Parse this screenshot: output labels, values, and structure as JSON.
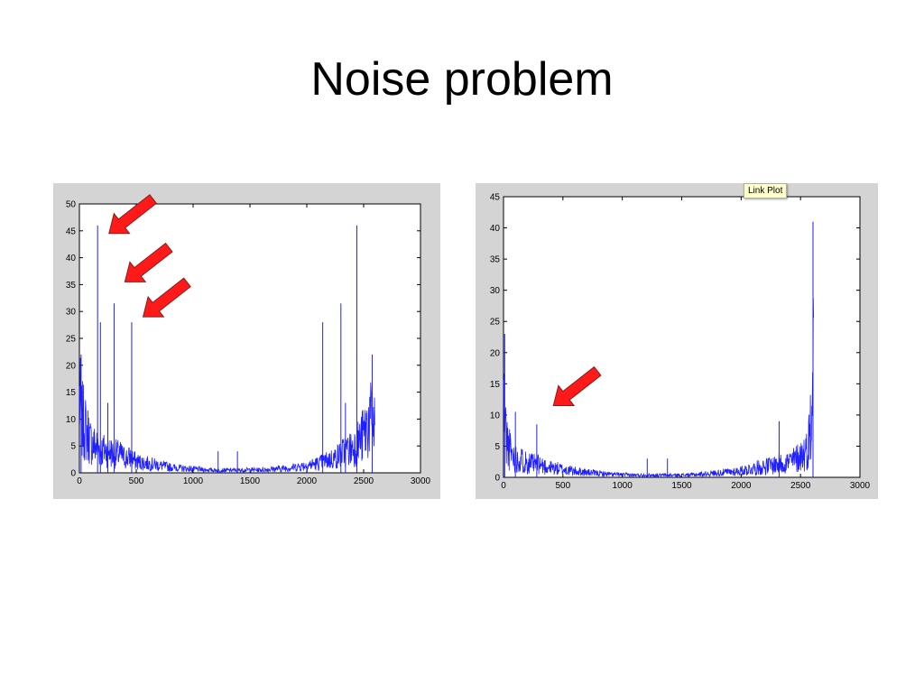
{
  "slide": {
    "title": "Noise problem"
  },
  "tooltip": {
    "label": "Link Plot"
  },
  "colors": {
    "series": "#1f1fff",
    "arrow": "#ff1a1a",
    "panel_background": "#d4d4d4"
  },
  "chart_data": [
    {
      "type": "line",
      "title": "",
      "xlabel": "",
      "ylabel": "",
      "xlim": [
        0,
        3000
      ],
      "ylim": [
        0,
        50
      ],
      "x_ticks": [
        0,
        500,
        1000,
        1500,
        2000,
        2500,
        3000
      ],
      "y_ticks": [
        0,
        5,
        10,
        15,
        20,
        25,
        30,
        35,
        40,
        45,
        50
      ],
      "grid": false,
      "series": [
        {
          "values_x": [
            0,
            20,
            40,
            60,
            80,
            100,
            150,
            200,
            250,
            300,
            350,
            400,
            450,
            500,
            600,
            700,
            800,
            900,
            1000,
            1100,
            1200,
            1300,
            1400,
            1500,
            1600,
            1700,
            1800,
            1900,
            2000,
            2100,
            2200,
            2250,
            2300,
            2350,
            2400,
            2450,
            2500,
            2550,
            2600
          ],
          "values_y": [
            20,
            14,
            13,
            11,
            10,
            8,
            7,
            6,
            6,
            5,
            5,
            4,
            4,
            3,
            2.5,
            2,
            1.5,
            1.2,
            1,
            0.8,
            0.7,
            0.7,
            0.7,
            0.8,
            0.8,
            1,
            1.2,
            1.5,
            2,
            2.5,
            3.5,
            4,
            5,
            6,
            6.5,
            8,
            10,
            14,
            12
          ],
          "spikes": [
            {
              "x": 15,
              "y": 22
            },
            {
              "x": 160,
              "y": 46
            },
            {
              "x": 185,
              "y": 28
            },
            {
              "x": 305,
              "y": 31.5
            },
            {
              "x": 250,
              "y": 13
            },
            {
              "x": 460,
              "y": 28
            },
            {
              "x": 1220,
              "y": 4
            },
            {
              "x": 1390,
              "y": 4
            },
            {
              "x": 2140,
              "y": 28
            },
            {
              "x": 2300,
              "y": 31.5
            },
            {
              "x": 2340,
              "y": 13
            },
            {
              "x": 2440,
              "y": 46
            },
            {
              "x": 2575,
              "y": 22
            }
          ]
        }
      ],
      "annotations": [
        {
          "type": "arrow",
          "tip_x": 260,
          "tip_y": 44.5
        },
        {
          "type": "arrow",
          "tip_x": 400,
          "tip_y": 35.5
        },
        {
          "type": "arrow",
          "tip_x": 560,
          "tip_y": 29
        }
      ]
    },
    {
      "type": "line",
      "title": "",
      "xlabel": "",
      "ylabel": "",
      "xlim": [
        0,
        3000
      ],
      "ylim": [
        0,
        45
      ],
      "x_ticks": [
        0,
        500,
        1000,
        1500,
        2000,
        2500,
        3000
      ],
      "y_ticks": [
        0,
        5,
        10,
        15,
        20,
        25,
        30,
        35,
        40,
        45
      ],
      "grid": false,
      "series": [
        {
          "values_x": [
            0,
            20,
            40,
            60,
            80,
            100,
            150,
            200,
            250,
            300,
            350,
            400,
            450,
            500,
            600,
            700,
            800,
            900,
            1000,
            1100,
            1200,
            1300,
            1400,
            1500,
            1600,
            1700,
            1800,
            1900,
            2000,
            2100,
            2200,
            2300,
            2400,
            2450,
            2500,
            2550,
            2580,
            2600,
            2610
          ],
          "values_y": [
            18,
            10,
            7,
            6,
            5,
            4.5,
            4,
            3.5,
            3,
            3,
            2.5,
            2.2,
            2,
            1.8,
            1.4,
            1.1,
            0.9,
            0.7,
            0.6,
            0.5,
            0.5,
            0.5,
            0.5,
            0.5,
            0.6,
            0.8,
            1,
            1.2,
            1.5,
            2,
            2.5,
            3,
            3.5,
            4,
            5,
            6,
            10,
            20,
            28
          ],
          "spikes": [
            {
              "x": 10,
              "y": 23
            },
            {
              "x": 100,
              "y": 10.5
            },
            {
              "x": 280,
              "y": 8.5
            },
            {
              "x": 1210,
              "y": 3
            },
            {
              "x": 1380,
              "y": 3
            },
            {
              "x": 2320,
              "y": 9
            },
            {
              "x": 2605,
              "y": 41
            }
          ]
        }
      ],
      "annotations": [
        {
          "type": "arrow",
          "tip_x": 420,
          "tip_y": 11.5
        }
      ]
    }
  ]
}
